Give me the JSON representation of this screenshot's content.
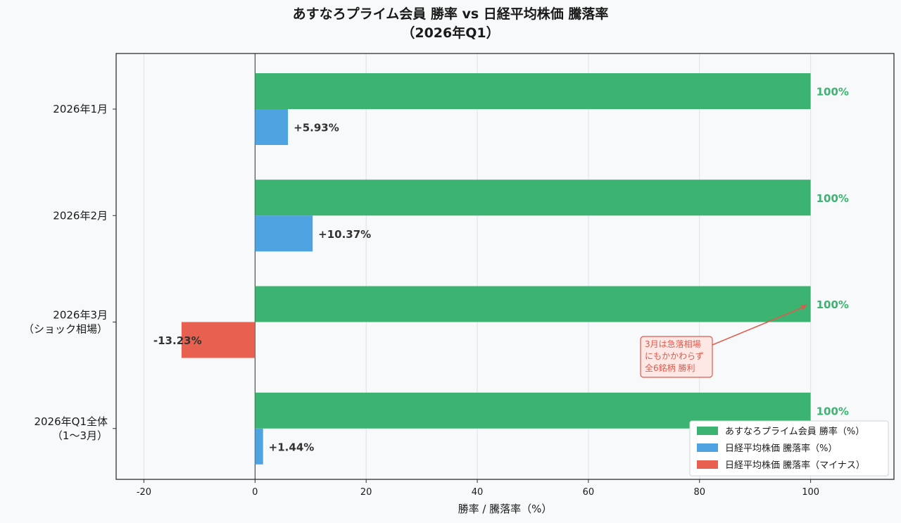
{
  "chart_data": {
    "type": "bar",
    "orientation": "horizontal",
    "title": "あすなろプライム会員 勝率 vs 日経平均株価 騰落率",
    "subtitle": "（2026年Q1）",
    "xlabel": "勝率 / 騰落率（%）",
    "ylabel": "",
    "xlim": [
      -25,
      115
    ],
    "xticks": [
      -20,
      0,
      20,
      40,
      60,
      80,
      100
    ],
    "grid": true,
    "legend_position": "bottom-right",
    "categories": [
      [
        "2026年1月"
      ],
      [
        "2026年2月"
      ],
      [
        "2026年3月",
        "（ショック相場）"
      ],
      [
        "2026年Q1全体",
        "（1〜3月）"
      ]
    ],
    "series": [
      {
        "name": "あすなろプライム会員 勝率（%）",
        "color": "#3cb371",
        "values": [
          100,
          100,
          100,
          100
        ],
        "labels": [
          "100%",
          "100%",
          "100%",
          "100%"
        ]
      },
      {
        "name": "日経平均株価 騰落率（%）",
        "color": "#4fa3e0",
        "negative_color": "#e8604f",
        "values": [
          5.93,
          10.37,
          -13.23,
          1.44
        ],
        "labels": [
          "+5.93%",
          "+10.37%",
          "-13.23%",
          "+1.44%"
        ]
      }
    ],
    "legend": [
      {
        "label": "あすなろプライム会員 勝率（%）",
        "color": "#3cb371"
      },
      {
        "label": "日経平均株価 騰落率（%）",
        "color": "#4fa3e0"
      },
      {
        "label": "日経平均株価 騰落率（マイナス）",
        "color": "#e8604f"
      }
    ],
    "annotation": {
      "lines": [
        "3月は急落相場",
        "にもかかわらず",
        "全6銘柄 勝利"
      ],
      "target_category_index": 2,
      "target_value": 100,
      "color": "#e05a4b"
    }
  }
}
